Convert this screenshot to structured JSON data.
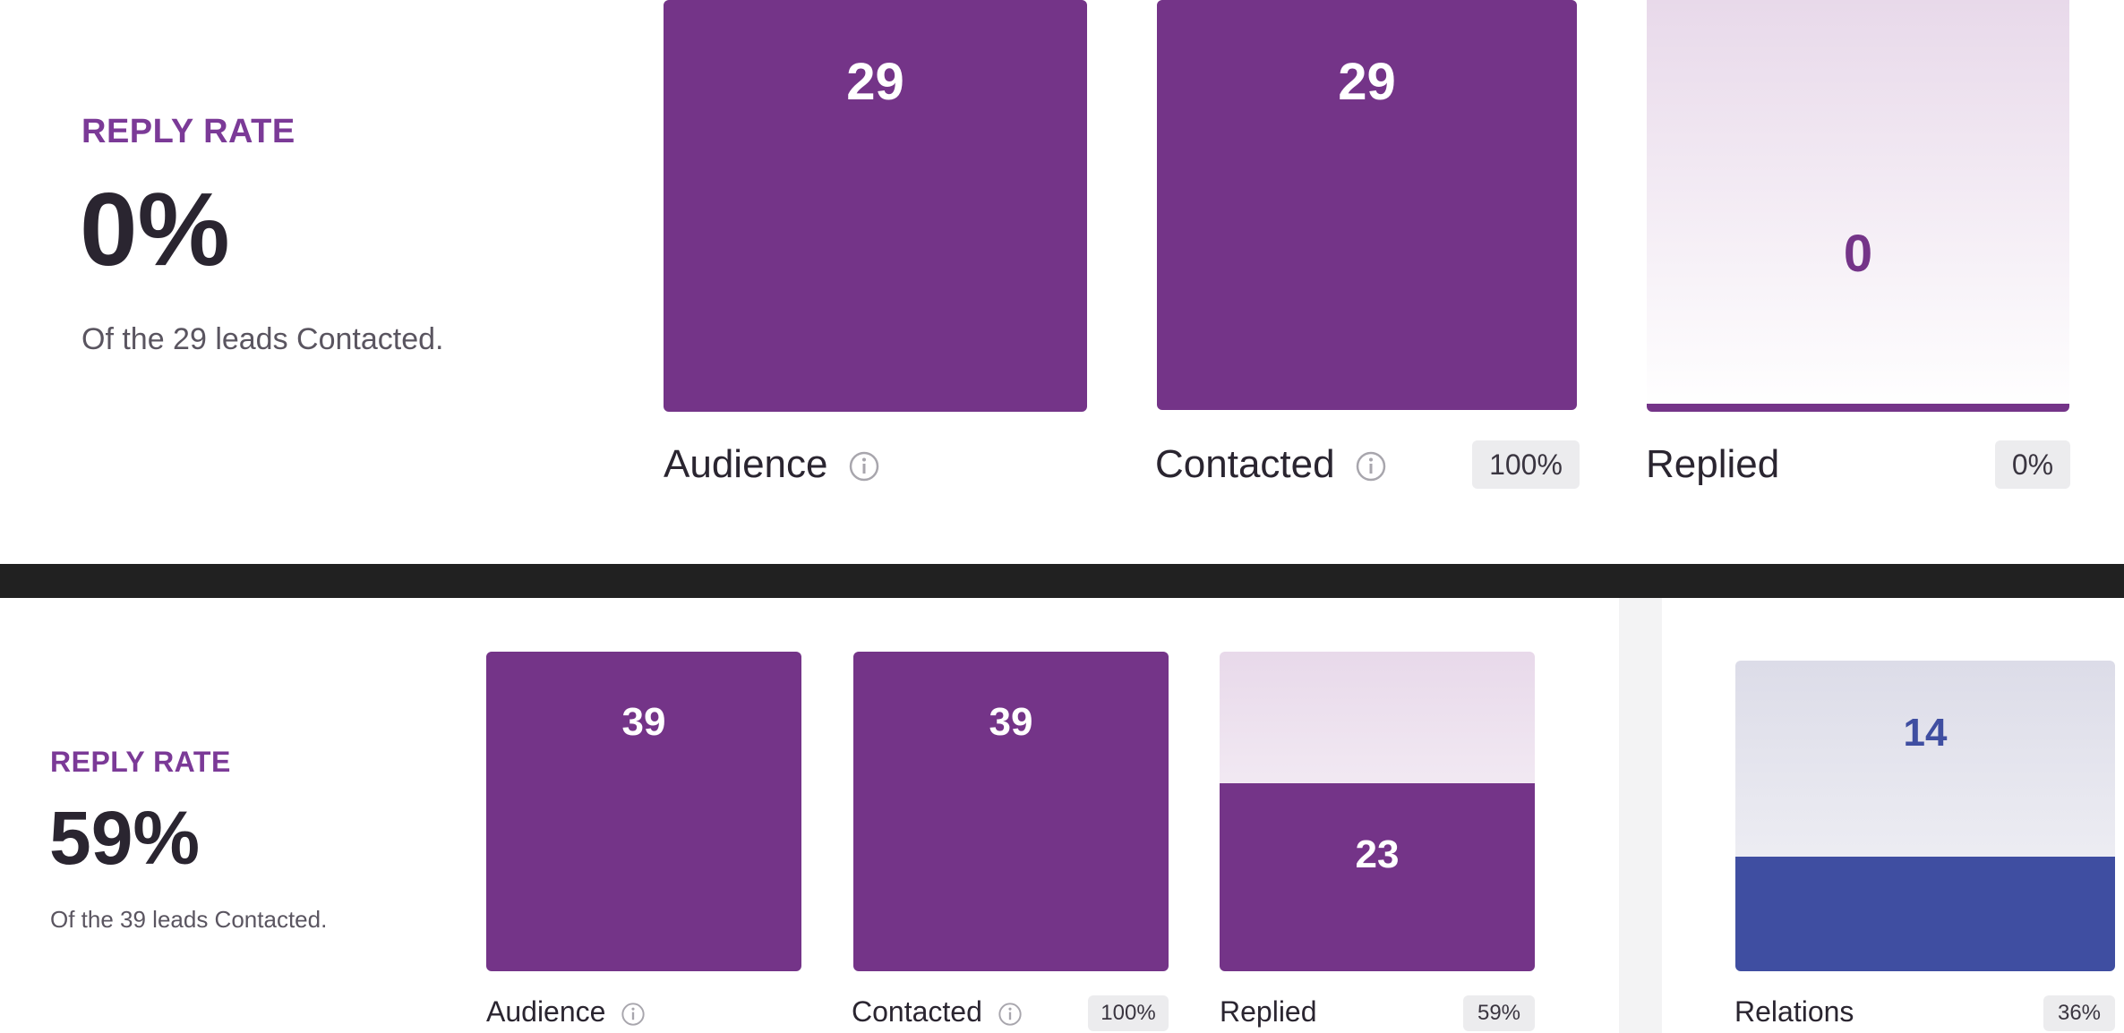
{
  "panels": [
    {
      "reply_rate": {
        "label": "REPLY RATE",
        "value": "0%",
        "note": "Of the 29 leads Contacted."
      },
      "bars": [
        {
          "value": "29",
          "caption": "Audience",
          "has_info": true,
          "fill_fraction": 1.0
        },
        {
          "value": "29",
          "caption": "Contacted",
          "has_info": true,
          "badge": "100%",
          "fill_fraction": 1.0
        },
        {
          "value": "0",
          "caption": "Replied",
          "has_info": false,
          "badge": "0%",
          "fill_fraction": 0.0
        }
      ]
    },
    {
      "reply_rate": {
        "label": "REPLY RATE",
        "value": "59%",
        "note": "Of the 39 leads Contacted."
      },
      "bars": [
        {
          "value": "39",
          "caption": "Audience",
          "has_info": true,
          "fill_fraction": 1.0
        },
        {
          "value": "39",
          "caption": "Contacted",
          "has_info": true,
          "badge": "100%",
          "fill_fraction": 1.0
        },
        {
          "value": "23",
          "caption": "Replied",
          "has_info": false,
          "badge": "59%",
          "fill_fraction": 0.59
        },
        {
          "value": "14",
          "caption": "Relations",
          "has_info": false,
          "badge": "36%",
          "fill_fraction": 0.36
        }
      ]
    }
  ],
  "colors": {
    "accent_purple": "#743488",
    "label_purple": "#7b3a97",
    "accent_blue": "#3f4ea1",
    "divider": "#212121"
  },
  "icons": {
    "info": "info-circle-icon"
  }
}
